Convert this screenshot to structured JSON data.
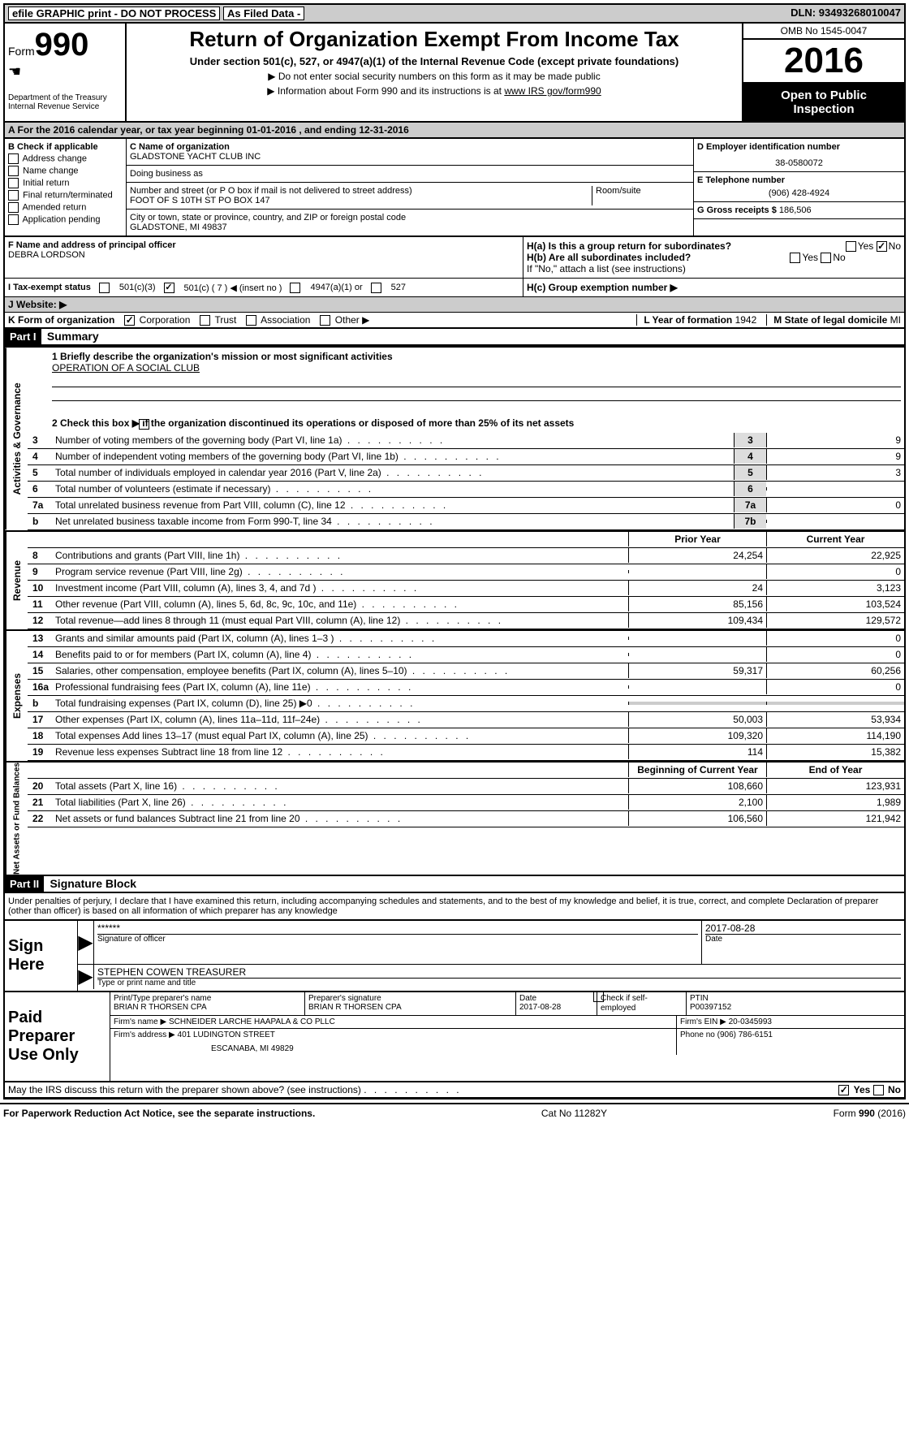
{
  "toolbar": {
    "efile": "efile GRAPHIC print - DO NOT PROCESS",
    "asfiled": "As Filed Data -",
    "dln_label": "DLN:",
    "dln": "93493268010047"
  },
  "header": {
    "form_label": "Form",
    "form_number": "990",
    "dept1": "Department of the Treasury",
    "dept2": "Internal Revenue Service",
    "title": "Return of Organization Exempt From Income Tax",
    "subtitle": "Under section 501(c), 527, or 4947(a)(1) of the Internal Revenue Code (except private foundations)",
    "instr1": "▶ Do not enter social security numbers on this form as it may be made public",
    "instr2": "▶ Information about Form 990 and its instructions is at ",
    "instr_link": "www IRS gov/form990",
    "omb": "OMB No 1545-0047",
    "year": "2016",
    "open1": "Open to Public",
    "open2": "Inspection"
  },
  "rowA": "A  For the 2016 calendar year, or tax year beginning 01-01-2016   , and ending 12-31-2016",
  "colB": {
    "label": "B Check if applicable",
    "items": [
      "Address change",
      "Name change",
      "Initial return",
      "Final return/terminated",
      "Amended return",
      "Application pending"
    ]
  },
  "colC": {
    "name_label": "C Name of organization",
    "name": "GLADSTONE YACHT CLUB INC",
    "dba_label": "Doing business as",
    "addr_label": "Number and street (or P O  box if mail is not delivered to street address)",
    "room_label": "Room/suite",
    "addr": "FOOT OF S 10TH ST PO BOX 147",
    "city_label": "City or town, state or province, country, and ZIP or foreign postal code",
    "city": "GLADSTONE, MI  49837"
  },
  "colD": {
    "d_label": "D Employer identification number",
    "ein": "38-0580072",
    "e_label": "E Telephone number",
    "phone": "(906) 428-4924",
    "g_label": "G Gross receipts $",
    "gross": "186,506"
  },
  "rowF": {
    "f_label": "F  Name and address of principal officer",
    "officer": "DEBRA LORDSON",
    "ha": "H(a)  Is this a group return for subordinates?",
    "hb": "H(b)  Are all subordinates included?",
    "hb_note": "If \"No,\" attach a list  (see instructions)",
    "hc": "H(c)  Group exemption number ▶",
    "yes": "Yes",
    "no": "No"
  },
  "rowI": {
    "label": "I  Tax-exempt status",
    "opt1": "501(c)(3)",
    "opt2": "501(c) ( 7 ) ◀ (insert no )",
    "opt3": "4947(a)(1) or",
    "opt4": "527"
  },
  "rowJ": "J  Website: ▶",
  "rowK": {
    "label": "K Form of organization",
    "opts": [
      "Corporation",
      "Trust",
      "Association",
      "Other ▶"
    ],
    "l_label": "L Year of formation",
    "l_val": "1942",
    "m_label": "M State of legal domicile",
    "m_val": "MI"
  },
  "partI": {
    "label": "Part I",
    "title": "Summary",
    "line1": "1 Briefly describe the organization's mission or most significant activities",
    "mission": "OPERATION OF A SOCIAL CLUB",
    "line2": "2  Check this box ▶         if the organization discontinued its operations or disposed of more than 25% of its net assets",
    "sections": {
      "gov": "Activities & Governance",
      "rev": "Revenue",
      "exp": "Expenses",
      "net": "Net Assets or Fund Balances"
    },
    "lines_gov": [
      {
        "n": "3",
        "d": "Number of voting members of the governing body (Part VI, line 1a)",
        "b": "3",
        "v": "9"
      },
      {
        "n": "4",
        "d": "Number of independent voting members of the governing body (Part VI, line 1b)",
        "b": "4",
        "v": "9"
      },
      {
        "n": "5",
        "d": "Total number of individuals employed in calendar year 2016 (Part V, line 2a)",
        "b": "5",
        "v": "3"
      },
      {
        "n": "6",
        "d": "Total number of volunteers (estimate if necessary)",
        "b": "6",
        "v": ""
      },
      {
        "n": "7a",
        "d": "Total unrelated business revenue from Part VIII, column (C), line 12",
        "b": "7a",
        "v": "0"
      },
      {
        "n": "b",
        "d": "Net unrelated business taxable income from Form 990-T, line 34",
        "b": "7b",
        "v": ""
      }
    ],
    "col_headers": {
      "prior": "Prior Year",
      "current": "Current Year",
      "beg": "Beginning of Current Year",
      "end": "End of Year"
    },
    "lines_rev": [
      {
        "n": "8",
        "d": "Contributions and grants (Part VIII, line 1h)",
        "p": "24,254",
        "c": "22,925"
      },
      {
        "n": "9",
        "d": "Program service revenue (Part VIII, line 2g)",
        "p": "",
        "c": "0"
      },
      {
        "n": "10",
        "d": "Investment income (Part VIII, column (A), lines 3, 4, and 7d )",
        "p": "24",
        "c": "3,123"
      },
      {
        "n": "11",
        "d": "Other revenue (Part VIII, column (A), lines 5, 6d, 8c, 9c, 10c, and 11e)",
        "p": "85,156",
        "c": "103,524"
      },
      {
        "n": "12",
        "d": "Total revenue—add lines 8 through 11 (must equal Part VIII, column (A), line 12)",
        "p": "109,434",
        "c": "129,572"
      }
    ],
    "lines_exp": [
      {
        "n": "13",
        "d": "Grants and similar amounts paid (Part IX, column (A), lines 1–3 )",
        "p": "",
        "c": "0"
      },
      {
        "n": "14",
        "d": "Benefits paid to or for members (Part IX, column (A), line 4)",
        "p": "",
        "c": "0"
      },
      {
        "n": "15",
        "d": "Salaries, other compensation, employee benefits (Part IX, column (A), lines 5–10)",
        "p": "59,317",
        "c": "60,256"
      },
      {
        "n": "16a",
        "d": "Professional fundraising fees (Part IX, column (A), line 11e)",
        "p": "",
        "c": "0"
      },
      {
        "n": "b",
        "d": "Total fundraising expenses (Part IX, column (D), line 25) ▶0",
        "p": "shaded",
        "c": "shaded"
      },
      {
        "n": "17",
        "d": "Other expenses (Part IX, column (A), lines 11a–11d, 11f–24e)",
        "p": "50,003",
        "c": "53,934"
      },
      {
        "n": "18",
        "d": "Total expenses  Add lines 13–17 (must equal Part IX, column (A), line 25)",
        "p": "109,320",
        "c": "114,190"
      },
      {
        "n": "19",
        "d": "Revenue less expenses  Subtract line 18 from line 12",
        "p": "114",
        "c": "15,382"
      }
    ],
    "lines_net": [
      {
        "n": "20",
        "d": "Total assets (Part X, line 16)",
        "p": "108,660",
        "c": "123,931"
      },
      {
        "n": "21",
        "d": "Total liabilities (Part X, line 26)",
        "p": "2,100",
        "c": "1,989"
      },
      {
        "n": "22",
        "d": "Net assets or fund balances  Subtract line 21 from line 20",
        "p": "106,560",
        "c": "121,942"
      }
    ]
  },
  "partII": {
    "label": "Part II",
    "title": "Signature Block",
    "declaration": "Under penalties of perjury, I declare that I have examined this return, including accompanying schedules and statements, and to the best of my knowledge and belief, it is true, correct, and complete  Declaration of preparer (other than officer) is based on all information of which preparer has any knowledge",
    "sign_here": "Sign Here",
    "stars": "******",
    "sig_of_officer": "Signature of officer",
    "date": "2017-08-28",
    "date_label": "Date",
    "officer_name": "STEPHEN COWEN TREASURER",
    "type_label": "Type or print name and title",
    "paid": "Paid Preparer Use Only",
    "prep_name_label": "Print/Type preparer's name",
    "prep_name": "BRIAN R THORSEN CPA",
    "prep_sig_label": "Preparer's signature",
    "prep_sig": "BRIAN R THORSEN CPA",
    "prep_date": "2017-08-28",
    "check_if": "Check         if self-employed",
    "ptin_label": "PTIN",
    "ptin": "P00397152",
    "firm_name_label": "Firm's name     ▶",
    "firm_name": "SCHNEIDER LARCHE HAAPALA & CO PLLC",
    "firm_ein_label": "Firm's EIN ▶",
    "firm_ein": "20-0345993",
    "firm_addr_label": "Firm's address ▶",
    "firm_addr1": "401 LUDINGTON STREET",
    "firm_addr2": "ESCANABA, MI  49829",
    "firm_phone_label": "Phone no",
    "firm_phone": "(906) 786-6151",
    "discuss": "May the IRS discuss this return with the preparer shown above? (see instructions)",
    "yes": "Yes",
    "no": "No"
  },
  "footer": {
    "left": "For Paperwork Reduction Act Notice, see the separate instructions.",
    "center": "Cat  No  11282Y",
    "right": "Form 990 (2016)"
  }
}
